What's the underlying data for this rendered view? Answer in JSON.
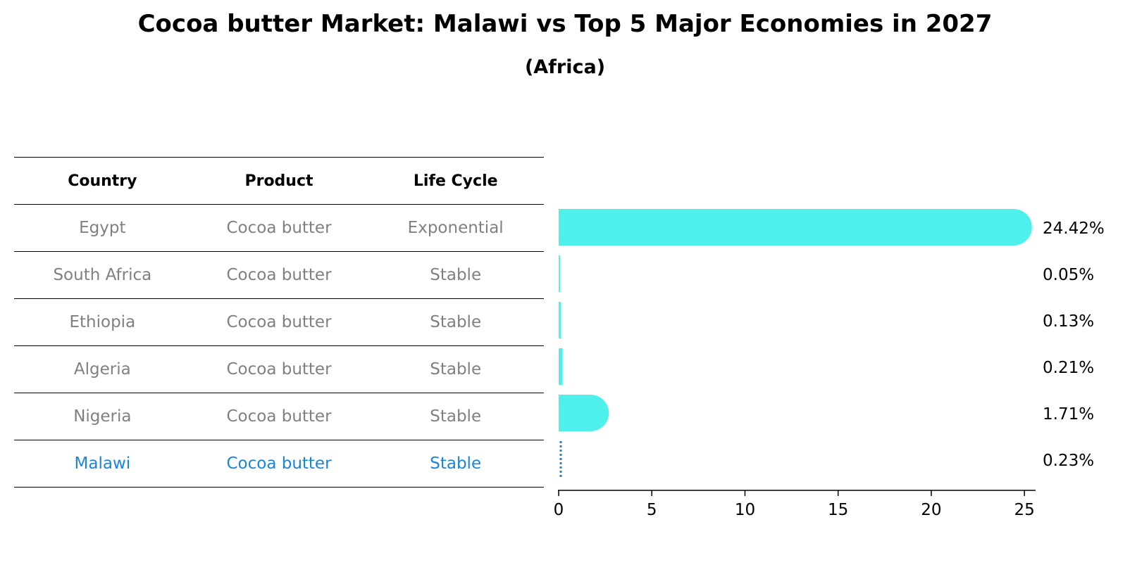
{
  "header": {
    "title": "Cocoa butter Market: Malawi vs Top 5 Major Economies in 2027",
    "subtitle": "(Africa)"
  },
  "table": {
    "columns": [
      "Country",
      "Product",
      "Life Cycle"
    ],
    "rows": [
      {
        "country": "Egypt",
        "product": "Cocoa butter",
        "life_cycle": "Exponential"
      },
      {
        "country": "South Africa",
        "product": "Cocoa butter",
        "life_cycle": "Stable"
      },
      {
        "country": "Ethiopia",
        "product": "Cocoa butter",
        "life_cycle": "Stable"
      },
      {
        "country": "Algeria",
        "product": "Cocoa butter",
        "life_cycle": "Stable"
      },
      {
        "country": "Nigeria",
        "product": "Cocoa butter",
        "life_cycle": "Stable"
      },
      {
        "country": "Malawi",
        "product": "Cocoa butter",
        "life_cycle": "Stable"
      }
    ]
  },
  "colors": {
    "bar": "#4ff0ec",
    "highlight": "#1b85d6",
    "muted_text": "#808080"
  },
  "chart_data": {
    "type": "bar",
    "orientation": "horizontal",
    "categories": [
      "Egypt",
      "South Africa",
      "Ethiopia",
      "Algeria",
      "Nigeria",
      "Malawi"
    ],
    "values": [
      24.42,
      0.05,
      0.13,
      0.21,
      1.71,
      0.23
    ],
    "value_labels": [
      "24.42%",
      "0.05%",
      "0.13%",
      "0.21%",
      "1.71%",
      "0.23%"
    ],
    "highlight": "Malawi",
    "xlim": [
      0,
      25.6
    ],
    "xticks": [
      0,
      5,
      10,
      15,
      20,
      25
    ],
    "xlabel": "",
    "ylabel": ""
  }
}
